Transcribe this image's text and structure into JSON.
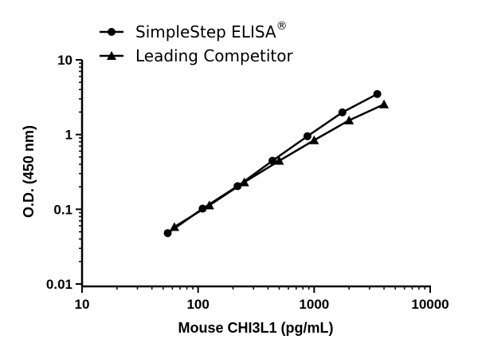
{
  "chart_data": {
    "type": "line",
    "xlabel": "Mouse CHI3L1 (pg/mL)",
    "ylabel": "O.D. (450 nm)",
    "xscale": "log",
    "yscale": "log",
    "xlim": [
      10,
      10000
    ],
    "ylim": [
      0.01,
      10
    ],
    "xticks": [
      "10",
      "100",
      "1000",
      "10000"
    ],
    "yticks": [
      "0.01",
      "0.1",
      "1",
      "10"
    ],
    "grid": false,
    "legend_position": "top-left",
    "series": [
      {
        "name": "SimpleStep ELISA",
        "name_mark": "®",
        "marker": "circle",
        "color": "#000000",
        "x": [
          54.7,
          109.4,
          218.8,
          437.5,
          875,
          1750,
          3500
        ],
        "y": [
          0.048,
          0.102,
          0.204,
          0.446,
          0.95,
          1.98,
          3.49
        ]
      },
      {
        "name": "Leading Competitor",
        "marker": "triangle",
        "color": "#000000",
        "x": [
          62.5,
          125,
          250,
          500,
          1000,
          2000,
          4000
        ],
        "y": [
          0.058,
          0.113,
          0.23,
          0.446,
          0.84,
          1.55,
          2.54
        ]
      }
    ]
  }
}
